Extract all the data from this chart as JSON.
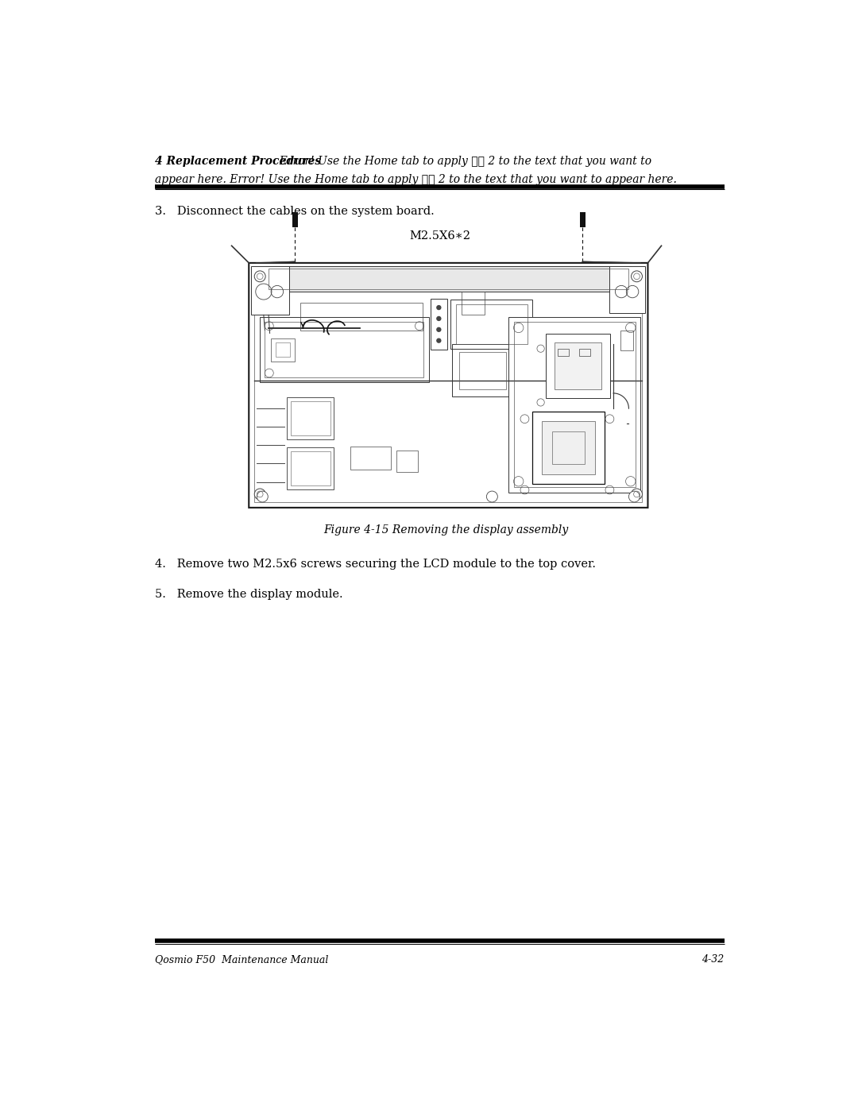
{
  "bg_color": "#ffffff",
  "page_width": 10.8,
  "page_height": 13.97,
  "header_bold": "4 Replacement Procedures",
  "header_italic_line1": "  Error! Use the Home tab to apply 標題 2 to the text that you want to",
  "header_italic_line2": "appear here. Error! Use the Home tab to apply 標題 2 to the text that you want to appear here.",
  "step3_text": "3.   Disconnect the cables on the system board.",
  "screw_label": "M2.5X6∗2",
  "figure_caption": "Figure 4-15 Removing the display assembly",
  "step4_text": "4.   Remove two M2.5x6 screws securing the LCD module to the top cover.",
  "step5_text": "5.   Remove the display module.",
  "footer_left": "Qosmio F50  Maintenance Manual",
  "footer_right": "4-32",
  "ml": 0.78,
  "mr": 0.78
}
